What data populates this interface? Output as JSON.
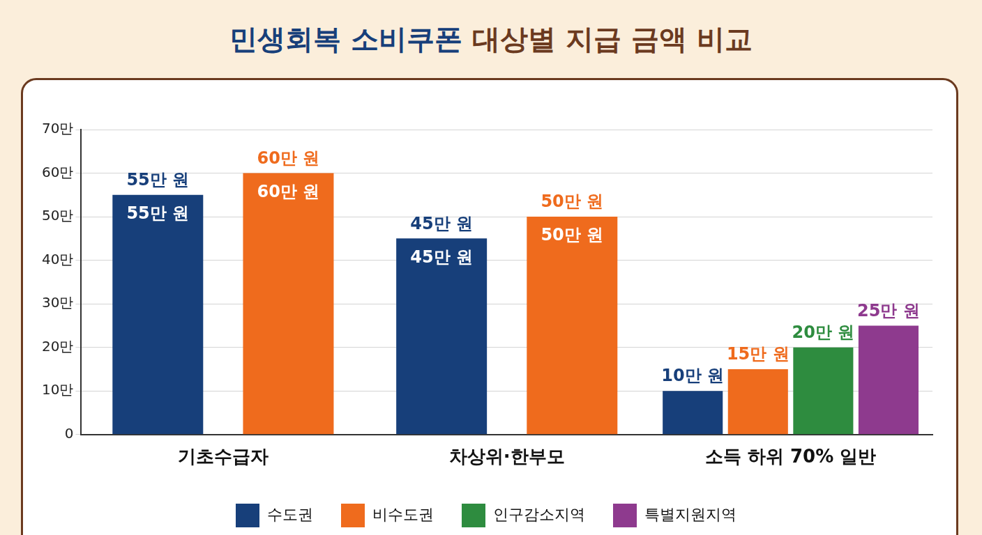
{
  "chart_data": {
    "type": "bar",
    "title": "민생회복 소비쿠폰 대상별 지급 금액 비교",
    "categories": [
      "기초수급자",
      "차상위·한부모",
      "소득 하위 70% 일반"
    ],
    "series": [
      {
        "name": "수도권",
        "color": "#173f7a",
        "values": [
          550000,
          450000,
          100000
        ],
        "value_labels": [
          "55만 원",
          "45만 원",
          "10만 원"
        ]
      },
      {
        "name": "비수도권",
        "color": "#ef6b1d",
        "values": [
          600000,
          500000,
          150000
        ],
        "value_labels": [
          "60만 원",
          "50만 원",
          "15만 원"
        ]
      },
      {
        "name": "인구감소지역",
        "color": "#2e8c3f",
        "values": [
          null,
          null,
          200000
        ],
        "value_labels": [
          null,
          null,
          "20만 원"
        ]
      },
      {
        "name": "특별지원지역",
        "color": "#8e3a8e",
        "values": [
          null,
          null,
          250000
        ],
        "value_labels": [
          null,
          null,
          "25만 원"
        ]
      }
    ],
    "ylim": [
      0,
      700000
    ],
    "yticks": [
      0,
      {
        "value": 100000,
        "label": "10만"
      },
      {
        "value": 200000,
        "label": "20만"
      },
      {
        "value": 300000,
        "label": "30만"
      },
      {
        "value": 400000,
        "label": "40만"
      },
      {
        "value": 500000,
        "label": "50만"
      },
      {
        "value": 600000,
        "label": "60만"
      },
      {
        "value": 700000,
        "label": "70만"
      }
    ],
    "grid": true,
    "legend": "bottom",
    "data_labels": true
  }
}
